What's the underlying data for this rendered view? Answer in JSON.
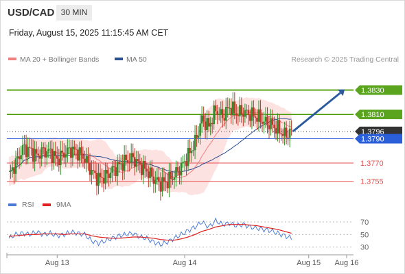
{
  "header": {
    "symbol": "USD/CAD",
    "timeframe": "30 MIN",
    "datetime": "Friday, August 15, 2025 11:15:45 AM CET",
    "credit": "Research © 2025 Trading Central"
  },
  "colors": {
    "support_resistance_green": "#5ba41e",
    "pivot_blue": "#2b5fd9",
    "target_red": "#e74c4c",
    "ma20": "#f08080",
    "bollinger_fill": "#fde2e2",
    "ma50": "#2c4f8f",
    "arrow": "#2b5a9e",
    "candle_up": "#2f8f2f",
    "candle_down": "#c0392b",
    "rsi": "#4b7bd6",
    "rsi_ma": "#e02020",
    "current_price_bg": "#333333"
  },
  "chart_data": [
    {
      "type": "line",
      "name": "price",
      "legend": [
        {
          "label": "MA 20 + Bollinger Bands",
          "color": "#f08080"
        },
        {
          "label": "MA 50",
          "color": "#2c4f8f"
        }
      ],
      "x_ticks": [
        "Aug 13",
        "Aug 14",
        "Aug 15",
        "Aug 16"
      ],
      "ylim": [
        1.3743,
        1.385
      ],
      "levels": [
        {
          "value": 1.383,
          "label": "1.3830",
          "kind": "resistance",
          "color": "#5ba41e"
        },
        {
          "value": 1.381,
          "label": "1.3810",
          "kind": "resistance",
          "color": "#5ba41e"
        },
        {
          "value": 1.3796,
          "label": "1.3796",
          "kind": "current",
          "color": "#333333"
        },
        {
          "value": 1.379,
          "label": "1.3790",
          "kind": "pivot",
          "color": "#2b5fd9"
        },
        {
          "value": 1.377,
          "label": "1.3770",
          "kind": "target",
          "color": "#e74c4c"
        },
        {
          "value": 1.3755,
          "label": "1.3755",
          "kind": "target",
          "color": "#e74c4c"
        }
      ],
      "price_path": [
        [
          0,
          1.376
        ],
        [
          4,
          1.377
        ],
        [
          8,
          1.3782
        ],
        [
          12,
          1.3781
        ],
        [
          16,
          1.3776
        ],
        [
          20,
          1.378
        ],
        [
          24,
          1.3779
        ],
        [
          28,
          1.3773
        ],
        [
          32,
          1.3778
        ],
        [
          36,
          1.3781
        ],
        [
          40,
          1.3779
        ],
        [
          44,
          1.3774
        ],
        [
          48,
          1.3763
        ],
        [
          52,
          1.3757
        ],
        [
          56,
          1.3759
        ],
        [
          60,
          1.3764
        ],
        [
          64,
          1.3768
        ],
        [
          68,
          1.3772
        ],
        [
          72,
          1.3774
        ],
        [
          76,
          1.3768
        ],
        [
          80,
          1.3764
        ],
        [
          84,
          1.3757
        ],
        [
          88,
          1.3753
        ],
        [
          92,
          1.3755
        ],
        [
          96,
          1.376
        ],
        [
          100,
          1.3767
        ],
        [
          104,
          1.3776
        ],
        [
          108,
          1.3787
        ],
        [
          112,
          1.3806
        ],
        [
          116,
          1.38
        ],
        [
          120,
          1.3814
        ],
        [
          124,
          1.3808
        ],
        [
          128,
          1.3816
        ],
        [
          132,
          1.3811
        ],
        [
          136,
          1.3812
        ],
        [
          140,
          1.381
        ],
        [
          144,
          1.3808
        ],
        [
          148,
          1.3804
        ],
        [
          152,
          1.3802
        ],
        [
          156,
          1.3798
        ],
        [
          160,
          1.3793
        ],
        [
          164,
          1.3796
        ]
      ],
      "x_max": 200,
      "projection": {
        "from": [
          164,
          1.3796
        ],
        "to": [
          190,
          1.383
        ]
      }
    },
    {
      "type": "line",
      "name": "rsi",
      "legend": [
        {
          "label": "RSI",
          "color": "#4b7bd6"
        },
        {
          "label": "9MA",
          "color": "#e02020"
        }
      ],
      "ylim": [
        22,
        82
      ],
      "y_ticks": [
        70,
        50,
        30
      ],
      "rsi": [
        44,
        50,
        52,
        50,
        54,
        50,
        52,
        48,
        50,
        54,
        52,
        50,
        40,
        36,
        40,
        44,
        48,
        50,
        52,
        46,
        44,
        38,
        34,
        38,
        44,
        50,
        56,
        62,
        70,
        62,
        72,
        66,
        68,
        64,
        66,
        62,
        60,
        58,
        56,
        52,
        48,
        44
      ],
      "rsi_ma": [
        47,
        48,
        49,
        50,
        50,
        51,
        51,
        51,
        50,
        51,
        51,
        51,
        48,
        46,
        45,
        44,
        44,
        45,
        46,
        46,
        45,
        44,
        42,
        41,
        41,
        43,
        46,
        50,
        55,
        58,
        62,
        64,
        66,
        66,
        66,
        65,
        64,
        62,
        60,
        58,
        55,
        52
      ]
    }
  ]
}
